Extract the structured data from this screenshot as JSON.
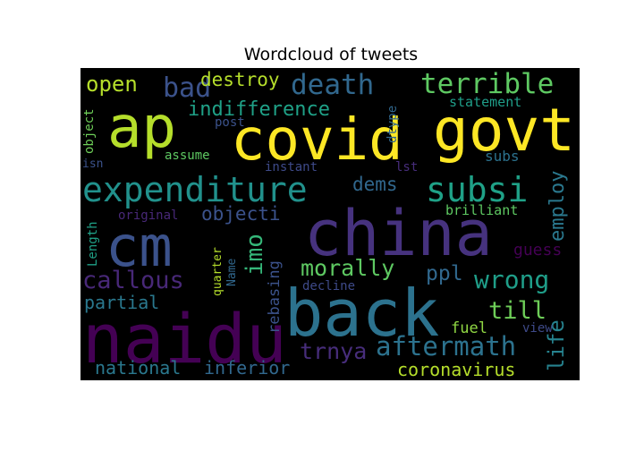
{
  "chart_data": {
    "type": "wordcloud",
    "title": "Wordcloud of tweets",
    "background": "#000000",
    "colormap": "viridis",
    "words": [
      {
        "text": "govt",
        "color": "#fde725"
      },
      {
        "text": "covid",
        "color": "#fde725"
      },
      {
        "text": "ap",
        "color": "#b5de2b"
      },
      {
        "text": "china",
        "color": "#46327e"
      },
      {
        "text": "cm",
        "color": "#3b528b"
      },
      {
        "text": "back",
        "color": "#2c728e"
      },
      {
        "text": "naidu",
        "color": "#440154"
      },
      {
        "text": "expenditure",
        "color": "#21918c"
      },
      {
        "text": "subsi",
        "color": "#1fa187"
      },
      {
        "text": "terrible",
        "color": "#5ec962"
      },
      {
        "text": "death",
        "color": "#31688e"
      },
      {
        "text": "bad",
        "color": "#3b528b"
      },
      {
        "text": "open",
        "color": "#b5de2b"
      },
      {
        "text": "destroy",
        "color": "#b5de2b"
      },
      {
        "text": "indifference",
        "color": "#1fa187"
      },
      {
        "text": "callous",
        "color": "#482878"
      },
      {
        "text": "aftermath",
        "color": "#2c728e"
      },
      {
        "text": "wrong",
        "color": "#1f9e89"
      },
      {
        "text": "morally",
        "color": "#5ec962"
      },
      {
        "text": "dems",
        "color": "#31688e"
      },
      {
        "text": "objecti",
        "color": "#3b528b"
      },
      {
        "text": "imo",
        "color": "#35b779"
      },
      {
        "text": "employ",
        "color": "#2a788e"
      },
      {
        "text": "ppl",
        "color": "#31688e"
      },
      {
        "text": "till",
        "color": "#6ece58"
      },
      {
        "text": "life",
        "color": "#26828e"
      },
      {
        "text": "trnya",
        "color": "#472d7b"
      },
      {
        "text": "coronavirus",
        "color": "#b5de2b"
      },
      {
        "text": "national",
        "color": "#2a788e"
      },
      {
        "text": "inferior",
        "color": "#31688e"
      },
      {
        "text": "partial",
        "color": "#2a788e"
      },
      {
        "text": "rebasing",
        "color": "#3b528b"
      },
      {
        "text": "fuel",
        "color": "#90d743"
      },
      {
        "text": "guess",
        "color": "#440154"
      },
      {
        "text": "statement",
        "color": "#1f9e89"
      },
      {
        "text": "brilliant",
        "color": "#5ec962"
      },
      {
        "text": "subs",
        "color": "#2c728e"
      },
      {
        "text": "post",
        "color": "#3b528b"
      },
      {
        "text": "assume",
        "color": "#5ec962"
      },
      {
        "text": "instant",
        "color": "#3e4a89"
      },
      {
        "text": "lst",
        "color": "#472d7b"
      },
      {
        "text": "dtype",
        "color": "#31688e"
      },
      {
        "text": "object",
        "color": "#6ece58"
      },
      {
        "text": "isn",
        "color": "#3b528b"
      },
      {
        "text": "original",
        "color": "#482878"
      },
      {
        "text": "Length",
        "color": "#1fa187"
      },
      {
        "text": "quarter",
        "color": "#b5de2b"
      },
      {
        "text": "Name",
        "color": "#31688e"
      },
      {
        "text": "decline",
        "color": "#3e4a89"
      },
      {
        "text": "view",
        "color": "#3e4a89"
      }
    ]
  }
}
